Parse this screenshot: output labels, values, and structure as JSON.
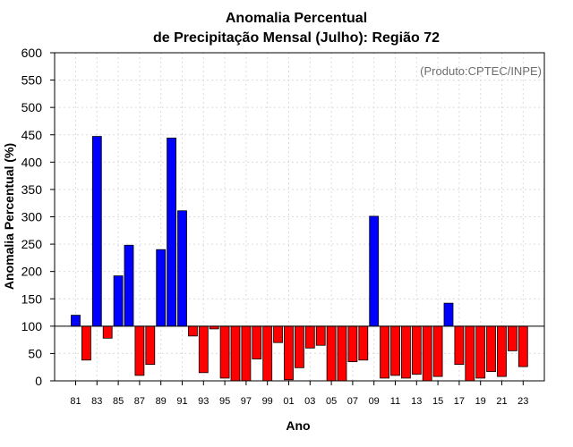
{
  "chart_data": {
    "type": "bar",
    "title": "Anomalia Percentual",
    "subtitle": "de Precipitação Mensal (Julho): Região 72",
    "xlabel": "Ano",
    "ylabel": "Anomalia Percentual (%)",
    "credit": "(Produto:CPTEC/INPE)",
    "ylim": [
      0,
      600
    ],
    "yticks": [
      "0",
      "50",
      "100",
      "150",
      "200",
      "250",
      "300",
      "350",
      "400",
      "450",
      "500",
      "550",
      "600"
    ],
    "baseline": 100,
    "grid": true,
    "colors": {
      "above": "#0000ff",
      "below": "#ff0000",
      "outline": "#000000"
    },
    "categories": [
      "81",
      "82",
      "83",
      "84",
      "85",
      "86",
      "87",
      "88",
      "89",
      "90",
      "91",
      "92",
      "93",
      "94",
      "95",
      "96",
      "97",
      "98",
      "99",
      "00",
      "01",
      "02",
      "03",
      "04",
      "05",
      "06",
      "07",
      "08",
      "09",
      "10",
      "11",
      "12",
      "13",
      "14",
      "15",
      "16",
      "17",
      "18",
      "19",
      "20",
      "21",
      "22",
      "23"
    ],
    "xtick_labels": [
      "81",
      "83",
      "85",
      "87",
      "89",
      "91",
      "93",
      "95",
      "97",
      "99",
      "01",
      "03",
      "05",
      "07",
      "09",
      "11",
      "13",
      "15",
      "17",
      "19",
      "21",
      "23"
    ],
    "values": [
      120,
      38,
      447,
      78,
      192,
      248,
      10,
      30,
      240,
      444,
      311,
      82,
      15,
      95,
      5,
      0,
      0,
      40,
      0,
      70,
      2,
      24,
      60,
      65,
      0,
      0,
      35,
      38,
      301,
      5,
      10,
      5,
      12,
      0,
      8,
      142,
      30,
      0,
      5,
      17,
      8,
      55,
      26
    ]
  }
}
